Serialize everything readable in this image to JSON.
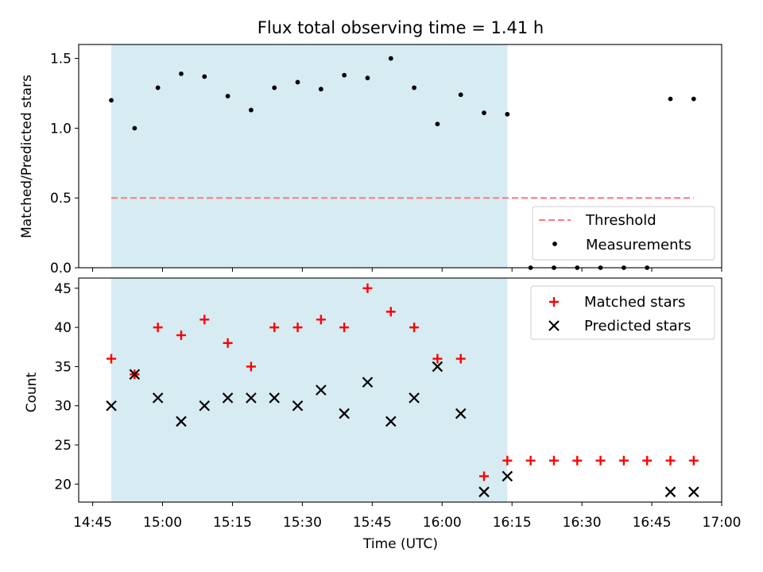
{
  "title": "Flux total observing time = 1.41 h",
  "colors": {
    "shade": "#add8e6",
    "threshold": "#ff7f7f",
    "measurement": "#000000",
    "matched": "#ff0000",
    "predicted": "#000000"
  },
  "chart_data": [
    {
      "type": "scatter",
      "panel": "top",
      "ylabel": "Matched/Predicted stars",
      "ylim": [
        0,
        1.6
      ],
      "yticks": [
        "0.0",
        "0.5",
        "1.0",
        "1.5"
      ],
      "ytick_values": [
        0,
        0.5,
        1.0,
        1.5
      ],
      "xlim": [
        "14:42",
        "17:00"
      ],
      "shaded_interval": [
        "14:49",
        "16:14"
      ],
      "threshold": {
        "name": "Threshold",
        "value": 0.5,
        "x_start": "14:49",
        "x_end": "16:54",
        "style": "dashed"
      },
      "series": [
        {
          "name": "Measurements",
          "x": [
            "14:49",
            "14:54",
            "14:59",
            "15:04",
            "15:09",
            "15:14",
            "15:19",
            "15:24",
            "15:29",
            "15:34",
            "15:39",
            "15:44",
            "15:49",
            "15:54",
            "15:59",
            "16:04",
            "16:09",
            "16:14",
            "16:19",
            "16:24",
            "16:29",
            "16:34",
            "16:39",
            "16:44",
            "16:49",
            "16:54"
          ],
          "y": [
            1.2,
            1.0,
            1.29,
            1.39,
            1.37,
            1.23,
            1.13,
            1.29,
            1.33,
            1.28,
            1.38,
            1.36,
            1.5,
            1.29,
            1.03,
            1.24,
            1.11,
            1.1,
            0,
            0,
            0,
            0,
            0,
            0,
            1.21,
            1.21
          ]
        }
      ],
      "legend": {
        "position": "lower right",
        "entries": [
          "Threshold",
          "Measurements"
        ]
      }
    },
    {
      "type": "scatter",
      "panel": "bottom",
      "ylabel": "Count",
      "xlabel": "Time (UTC)",
      "ylim": [
        17.7,
        46.3
      ],
      "yticks": [
        "20",
        "25",
        "30",
        "35",
        "40",
        "45"
      ],
      "ytick_values": [
        20,
        25,
        30,
        35,
        40,
        45
      ],
      "xlim": [
        "14:42",
        "17:00"
      ],
      "xticks": [
        "14:45",
        "15:00",
        "15:15",
        "15:30",
        "15:45",
        "16:00",
        "16:15",
        "16:30",
        "16:45",
        "17:00"
      ],
      "shaded_interval": [
        "14:49",
        "16:14"
      ],
      "series": [
        {
          "name": "Matched stars",
          "marker": "+",
          "x": [
            "14:49",
            "14:54",
            "14:59",
            "15:04",
            "15:09",
            "15:14",
            "15:19",
            "15:24",
            "15:29",
            "15:34",
            "15:39",
            "15:44",
            "15:49",
            "15:54",
            "15:59",
            "16:04",
            "16:09",
            "16:14",
            "16:19",
            "16:24",
            "16:29",
            "16:34",
            "16:39",
            "16:44",
            "16:49",
            "16:54"
          ],
          "y": [
            36,
            34,
            40,
            39,
            41,
            38,
            35,
            40,
            40,
            41,
            40,
            45,
            42,
            40,
            36,
            36,
            21,
            23,
            23,
            23,
            23,
            23,
            23,
            23,
            23,
            23
          ]
        },
        {
          "name": "Predicted stars",
          "marker": "x",
          "x": [
            "14:49",
            "14:54",
            "14:59",
            "15:04",
            "15:09",
            "15:14",
            "15:19",
            "15:24",
            "15:29",
            "15:34",
            "15:39",
            "15:44",
            "15:49",
            "15:54",
            "15:59",
            "16:04",
            "16:09",
            "16:14",
            "16:49",
            "16:54"
          ],
          "y": [
            30,
            34,
            31,
            28,
            30,
            31,
            31,
            31,
            30,
            32,
            29,
            33,
            28,
            31,
            35,
            29,
            19,
            21,
            19,
            19
          ]
        }
      ],
      "legend": {
        "position": "upper right",
        "entries": [
          "Matched stars",
          "Predicted stars"
        ]
      }
    }
  ]
}
